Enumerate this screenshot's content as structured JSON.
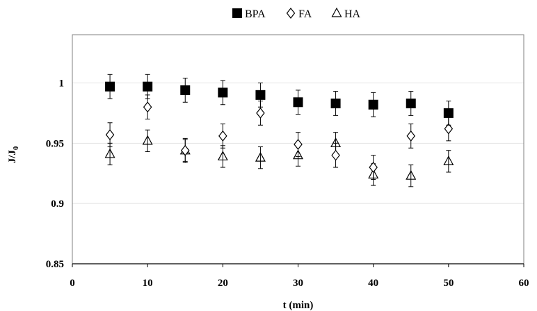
{
  "chart_data": {
    "type": "scatter",
    "xlabel": "t (min)",
    "ylabel_main": "J/J",
    "ylabel_sub": "0",
    "xlim": [
      0,
      60
    ],
    "ylim": [
      0.85,
      1.04
    ],
    "xticks": [
      "0",
      "10",
      "20",
      "30",
      "40",
      "50",
      "60"
    ],
    "yticks": [
      "0.85",
      "0.9",
      "0.95",
      "1"
    ],
    "grid": "horizontal",
    "legend_position": "top-center",
    "series": [
      {
        "name": "BPA",
        "marker": "filled-square",
        "color": "#000000",
        "x": [
          5,
          10,
          15,
          20,
          25,
          30,
          35,
          40,
          45,
          50
        ],
        "y": [
          0.997,
          0.997,
          0.994,
          0.992,
          0.99,
          0.984,
          0.983,
          0.982,
          0.983,
          0.975
        ],
        "error": [
          0.01,
          0.01,
          0.01,
          0.01,
          0.01,
          0.01,
          0.01,
          0.01,
          0.01,
          0.01
        ]
      },
      {
        "name": "FA",
        "marker": "open-diamond",
        "color": "#000000",
        "x": [
          5,
          10,
          15,
          20,
          25,
          30,
          35,
          40,
          45,
          50
        ],
        "y": [
          0.957,
          0.98,
          0.944,
          0.956,
          0.975,
          0.949,
          0.94,
          0.93,
          0.956,
          0.962
        ],
        "error": [
          0.01,
          0.01,
          0.01,
          0.01,
          0.01,
          0.01,
          0.01,
          0.01,
          0.01,
          0.01
        ]
      },
      {
        "name": "HA",
        "marker": "open-triangle",
        "color": "#000000",
        "x": [
          5,
          10,
          15,
          20,
          25,
          30,
          35,
          40,
          45,
          50
        ],
        "y": [
          0.941,
          0.952,
          0.944,
          0.939,
          0.938,
          0.94,
          0.95,
          0.924,
          0.923,
          0.935
        ],
        "error": [
          0.009,
          0.009,
          0.009,
          0.009,
          0.009,
          0.009,
          0.009,
          0.009,
          0.009,
          0.009
        ]
      }
    ]
  }
}
